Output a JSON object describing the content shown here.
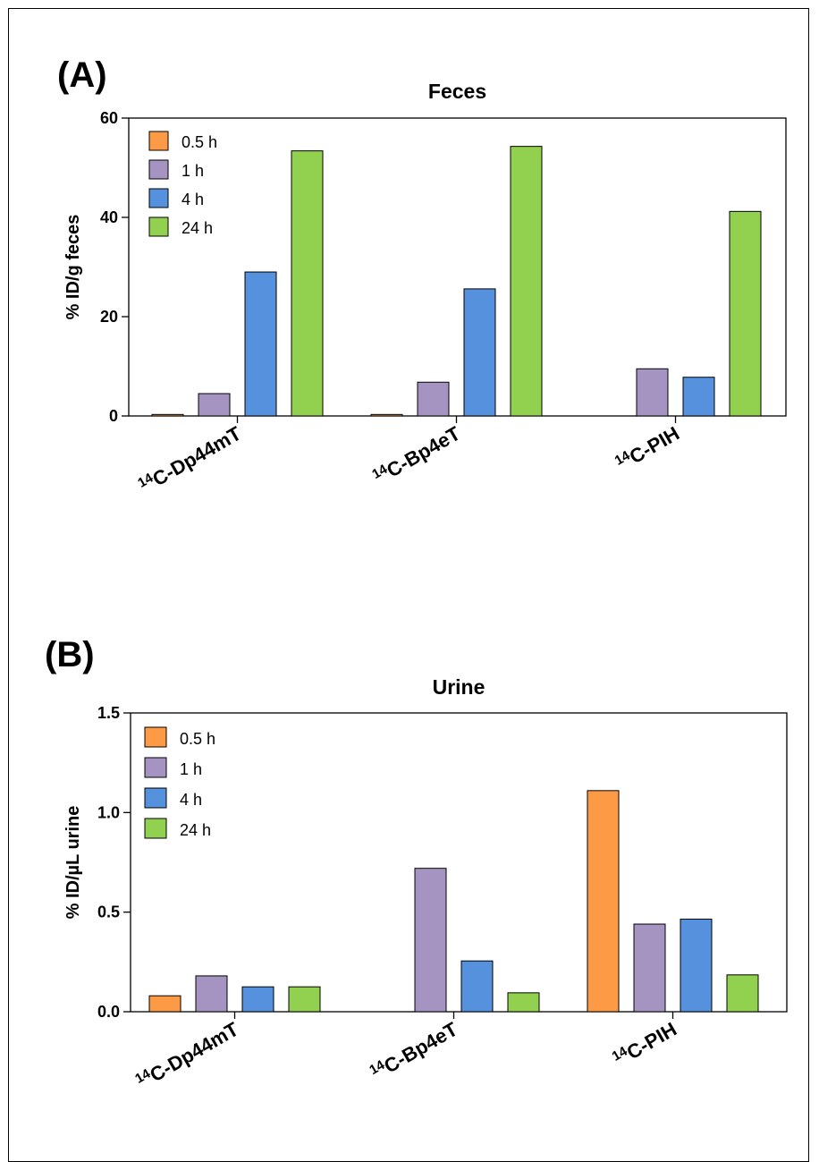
{
  "colors": {
    "0.5 h": "#fd9a45",
    "1 h": "#a594c2",
    "4 h": "#5591dc",
    "24 h": "#92d14f"
  },
  "chart_data": [
    {
      "panel_label": "(A)",
      "type": "bar",
      "title": "Feces",
      "ylabel": "% ID/g feces",
      "xlabel": "",
      "ylim": [
        0,
        60
      ],
      "yticks": [
        0,
        20,
        40,
        60
      ],
      "grid": false,
      "legend_position": "top-left",
      "categories": [
        {
          "sup": "14",
          "name": "C-Dp44mT"
        },
        {
          "sup": "14",
          "name": "C-Bp4eT"
        },
        {
          "sup": "14",
          "name": "C-PIH"
        }
      ],
      "series": [
        {
          "name": "0.5 h",
          "values": [
            0.3,
            0.3,
            null
          ]
        },
        {
          "name": "1 h",
          "values": [
            4.5,
            6.8,
            9.5
          ]
        },
        {
          "name": "4 h",
          "values": [
            29.0,
            25.6,
            7.8
          ]
        },
        {
          "name": "24 h",
          "values": [
            53.4,
            54.3,
            41.2
          ]
        }
      ]
    },
    {
      "panel_label": "(B)",
      "type": "bar",
      "title": "Urine",
      "ylabel": "% ID/µL urine",
      "xlabel": "",
      "ylim": [
        0,
        1.5
      ],
      "yticks": [
        0.0,
        0.5,
        1.0,
        1.5
      ],
      "grid": false,
      "legend_position": "top-left",
      "categories": [
        {
          "sup": "14",
          "name": "C-Dp44mT"
        },
        {
          "sup": "14",
          "name": "C-Bp4eT"
        },
        {
          "sup": "14",
          "name": "C-PIH"
        }
      ],
      "series": [
        {
          "name": "0.5 h",
          "values": [
            0.08,
            null,
            1.11
          ]
        },
        {
          "name": "1 h",
          "values": [
            0.18,
            0.72,
            0.44
          ]
        },
        {
          "name": "4 h",
          "values": [
            0.125,
            0.255,
            0.465
          ]
        },
        {
          "name": "24 h",
          "values": [
            0.125,
            0.095,
            0.185
          ]
        }
      ]
    }
  ]
}
